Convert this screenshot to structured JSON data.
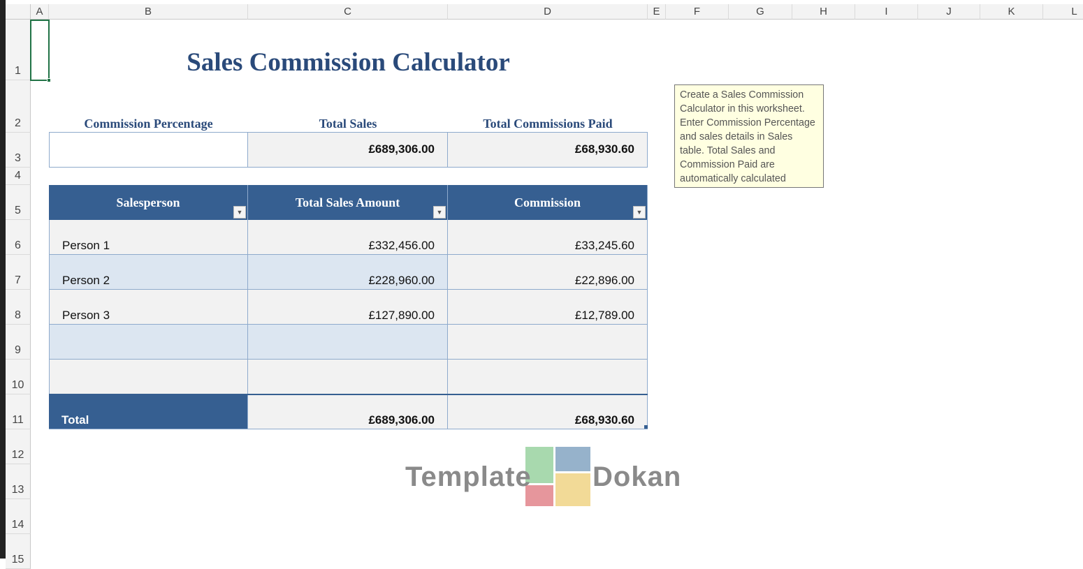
{
  "columns": [
    "A",
    "B",
    "C",
    "D",
    "E",
    "F",
    "G",
    "H",
    "I",
    "J",
    "K",
    "L"
  ],
  "rows": [
    "1",
    "2",
    "3",
    "4",
    "5",
    "6",
    "7",
    "8",
    "9",
    "10",
    "11",
    "12",
    "13",
    "14",
    "15"
  ],
  "title": "Sales Commission Calculator",
  "summary": {
    "label_commission_pct": "Commission Percentage",
    "label_total_sales": "Total Sales",
    "label_total_commissions": "Total Commissions Paid",
    "total_sales": "£689,306.00",
    "total_commissions": "£68,930.60"
  },
  "tooltip": "Create a Sales Commission Calculator in this worksheet. Enter Commission Percentage and sales details in Sales table. Total Sales and Commission Paid are automatically calculated",
  "table": {
    "headers": [
      "Salesperson",
      "Total Sales Amount",
      "Commission"
    ],
    "rows": [
      [
        "Person 1",
        "£332,456.00",
        "£33,245.60"
      ],
      [
        "Person 2",
        "£228,960.00",
        "£22,896.00"
      ],
      [
        "Person 3",
        "£127,890.00",
        "£12,789.00"
      ],
      [
        "",
        "",
        ""
      ],
      [
        "",
        "",
        ""
      ]
    ],
    "total": [
      "Total",
      "£689,306.00",
      "£68,930.60"
    ]
  },
  "watermark": {
    "left": "Template",
    "right": "Dokan"
  },
  "colors": {
    "header": "#365f91",
    "title": "#2a4a7a",
    "band": "#dce6f1",
    "cell": "#f2f2f2",
    "selection": "#217346"
  }
}
